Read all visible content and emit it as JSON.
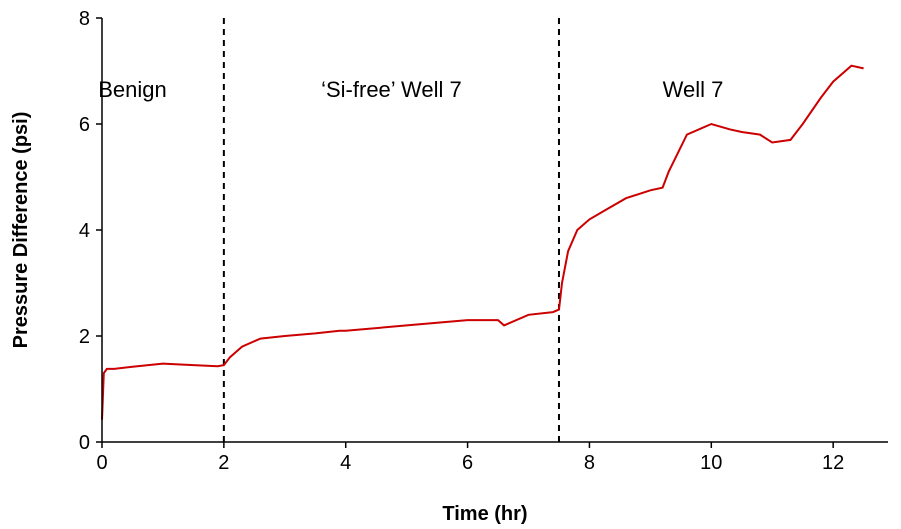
{
  "chart_data": {
    "type": "line",
    "title": "",
    "xlabel": "Time (hr)",
    "ylabel": "Pressure Difference (psi)",
    "xlim": [
      0,
      12.9
    ],
    "ylim": [
      0,
      8
    ],
    "x_ticks": [
      0,
      2,
      4,
      6,
      8,
      10,
      12
    ],
    "y_ticks": [
      0,
      2,
      4,
      6,
      8
    ],
    "x_tick_labels": [
      "0",
      "2",
      "4",
      "6",
      "8",
      "10",
      "12"
    ],
    "y_tick_labels": [
      "0",
      "2",
      "4",
      "6",
      "8"
    ],
    "grid": false,
    "legend": "none",
    "line_color": "#cc0000",
    "divider_color": "#000000",
    "dividers": [
      2,
      7.5
    ],
    "regions": [
      {
        "label": "Benign",
        "x": 0.5
      },
      {
        "label": "‘Si-free’ Well 7",
        "x": 4.75
      },
      {
        "label": "Well 7",
        "x": 9.7
      }
    ],
    "series": [
      {
        "x": [
          0,
          0.03,
          0.08,
          0.2,
          0.5,
          1.0,
          1.5,
          1.9,
          2.0,
          2.1,
          2.3,
          2.6,
          3.0,
          3.5,
          3.9,
          4.0,
          4.5,
          5.0,
          5.5,
          6.0,
          6.5,
          6.6,
          7.0,
          7.4,
          7.5,
          7.55,
          7.65,
          7.8,
          8.0,
          8.3,
          8.6,
          9.0,
          9.2,
          9.3,
          9.6,
          10.0,
          10.3,
          10.5,
          10.8,
          11.0,
          11.3,
          11.5,
          11.8,
          12.0,
          12.3,
          12.5
        ],
        "y": [
          0.42,
          1.3,
          1.38,
          1.38,
          1.42,
          1.48,
          1.45,
          1.43,
          1.45,
          1.6,
          1.8,
          1.95,
          2.0,
          2.05,
          2.1,
          2.1,
          2.15,
          2.2,
          2.25,
          2.3,
          2.3,
          2.2,
          2.4,
          2.45,
          2.5,
          3.0,
          3.6,
          4.0,
          4.2,
          4.4,
          4.6,
          4.75,
          4.8,
          5.1,
          5.8,
          6.0,
          5.9,
          5.85,
          5.8,
          5.65,
          5.7,
          6.0,
          6.5,
          6.8,
          7.1,
          7.05
        ]
      }
    ]
  }
}
